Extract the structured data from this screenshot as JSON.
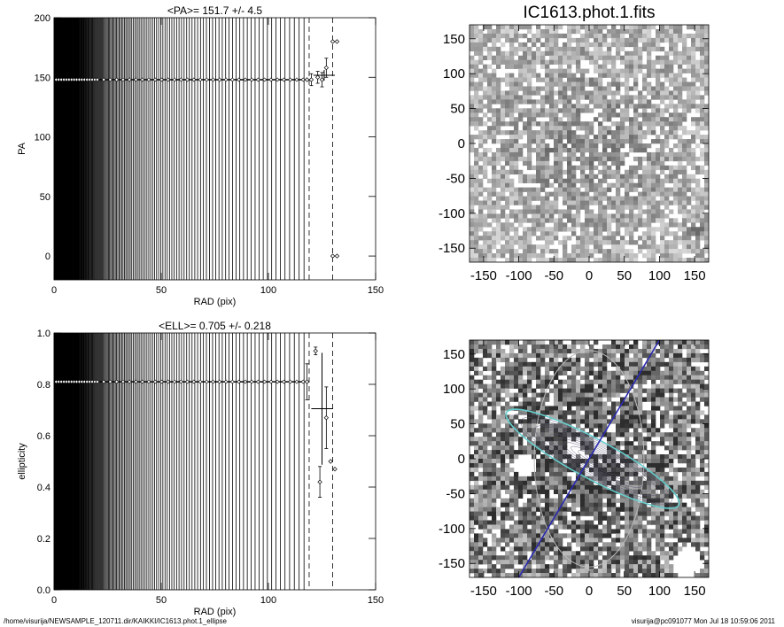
{
  "chart_data": [
    {
      "type": "scatter",
      "title": "<PA>= 151.7 +/-   4.5",
      "xlabel": "RAD (pix)",
      "ylabel": "PA",
      "xlim": [
        0,
        150
      ],
      "ylim": [
        -20,
        200
      ],
      "xticks": [
        0,
        50,
        100,
        150
      ],
      "yticks": [
        0,
        50,
        100,
        150,
        200
      ],
      "grid": false,
      "profile_radius_max": 118,
      "dashed_radii": [
        119,
        130
      ],
      "points": [
        {
          "x": 0,
          "y": 148
        },
        {
          "x": 10,
          "y": 148
        },
        {
          "x": 20,
          "y": 148
        },
        {
          "x": 30,
          "y": 148
        },
        {
          "x": 40,
          "y": 148
        },
        {
          "x": 50,
          "y": 148
        },
        {
          "x": 60,
          "y": 148
        },
        {
          "x": 70,
          "y": 148
        },
        {
          "x": 80,
          "y": 148
        },
        {
          "x": 90,
          "y": 148
        },
        {
          "x": 100,
          "y": 148
        },
        {
          "x": 110,
          "y": 148
        },
        {
          "x": 118,
          "y": 148
        },
        {
          "x": 120,
          "y": 148,
          "err": 5
        },
        {
          "x": 123,
          "y": 150,
          "err": 5
        },
        {
          "x": 125,
          "y": 148,
          "err": 6
        },
        {
          "x": 127,
          "y": 158,
          "err": 8
        },
        {
          "x": 130,
          "y": 180
        },
        {
          "x": 132,
          "y": 180
        },
        {
          "x": 130,
          "y": 0
        },
        {
          "x": 132,
          "y": 0
        }
      ],
      "mean_marker": {
        "x": 126,
        "y": 151.7,
        "xerr": 5,
        "yerr": 4.5
      }
    },
    {
      "type": "scatter",
      "title": "<ELL>= 0.705 +/-  0.218",
      "xlabel": "RAD (pix)",
      "ylabel": "ellipticity",
      "xlim": [
        0,
        150
      ],
      "ylim": [
        0,
        1
      ],
      "xticks": [
        0,
        50,
        100,
        150
      ],
      "yticks": [
        0.0,
        0.2,
        0.4,
        0.6,
        0.8,
        1.0
      ],
      "grid": false,
      "profile_radius_max": 118,
      "dashed_radii": [
        119,
        130
      ],
      "points": [
        {
          "x": 0,
          "y": 0.81
        },
        {
          "x": 10,
          "y": 0.81
        },
        {
          "x": 20,
          "y": 0.81
        },
        {
          "x": 30,
          "y": 0.81
        },
        {
          "x": 40,
          "y": 0.81
        },
        {
          "x": 50,
          "y": 0.81
        },
        {
          "x": 60,
          "y": 0.81
        },
        {
          "x": 70,
          "y": 0.81
        },
        {
          "x": 80,
          "y": 0.81
        },
        {
          "x": 90,
          "y": 0.81
        },
        {
          "x": 100,
          "y": 0.81
        },
        {
          "x": 110,
          "y": 0.81
        },
        {
          "x": 118,
          "y": 0.81,
          "err": 0.07
        },
        {
          "x": 122,
          "y": 0.93,
          "err": 0.015
        },
        {
          "x": 124,
          "y": 0.42,
          "err": 0.06
        },
        {
          "x": 127,
          "y": 0.67,
          "err": 0.12
        },
        {
          "x": 129,
          "y": 0.5
        },
        {
          "x": 131,
          "y": 0.47
        }
      ],
      "mean_marker": {
        "x": 125,
        "y": 0.705,
        "xerr": 5,
        "yerr": 0.218
      }
    },
    {
      "type": "heatmap",
      "title": "IC1613.phot.1.fits",
      "xlim": [
        -170,
        170
      ],
      "ylim": [
        -170,
        170
      ],
      "xticks": [
        -150,
        -100,
        -50,
        0,
        50,
        100,
        150
      ],
      "yticks": [
        -150,
        -100,
        -50,
        0,
        50,
        100,
        150
      ],
      "bright_sources": [
        {
          "x": 150,
          "y": -125,
          "size": 14
        },
        {
          "x": -55,
          "y": -12,
          "size": 8
        },
        {
          "x": 30,
          "y": 17,
          "size": 4
        }
      ]
    },
    {
      "type": "heatmap",
      "title": "",
      "xlim": [
        -170,
        170
      ],
      "ylim": [
        -170,
        170
      ],
      "xticks": [
        -150,
        -100,
        -50,
        0,
        50,
        100,
        150
      ],
      "yticks": [
        -150,
        -100,
        -50,
        0,
        50,
        100,
        150
      ],
      "outer_ellipse": {
        "center": [
          0,
          0
        ],
        "semi_major": 155,
        "semi_minor": 78,
        "angle_deg": 0
      },
      "fitted_ellipse": {
        "center": [
          5,
          0
        ],
        "semi_major": 140,
        "semi_minor": 28,
        "angle_deg": 151.7
      },
      "major_axis_line": {
        "from": [
          -100,
          -170
        ],
        "to": [
          100,
          170
        ]
      },
      "masked_regions": [
        {
          "x": -92,
          "y": -10,
          "r": 16
        },
        {
          "x": -22,
          "y": 15,
          "r": 12
        },
        {
          "x": 15,
          "y": 15,
          "r": 10
        },
        {
          "x": 140,
          "y": -150,
          "r": 22
        }
      ]
    }
  ],
  "footer": {
    "path": "/home/visurija/NEWSAMPLE_120711.dir/KAIKKI/IC1613.phot.1_ellipse",
    "user_time": "visurija@pc091077  Mon Jul 18 10:59:06 2011"
  }
}
